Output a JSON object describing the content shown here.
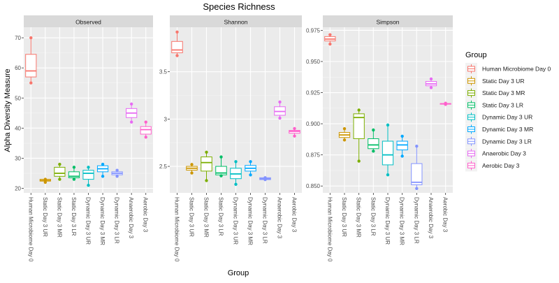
{
  "title": "Species Richness",
  "xlabel": "Group",
  "ylabel": "Alpha Diversity Measure",
  "legend": {
    "title": "Group",
    "position": "right"
  },
  "groups": [
    {
      "name": "Human Microbiome Day 0",
      "color": "#F8766D"
    },
    {
      "name": "Static Day 3 UR",
      "color": "#CD9600"
    },
    {
      "name": "Static Day 3 MR",
      "color": "#7CAE00"
    },
    {
      "name": "Static Day 3 LR",
      "color": "#00BE67"
    },
    {
      "name": "Dynamic Day 3 UR",
      "color": "#00BFC4"
    },
    {
      "name": "Dynamic Day 3 MR",
      "color": "#00A9FF"
    },
    {
      "name": "Dynamic Day 3 LR",
      "color": "#8494FF"
    },
    {
      "name": "Anaerobic Day 3",
      "color": "#E76BF3"
    },
    {
      "name": "Aerobic Day 3",
      "color": "#FF61CC"
    }
  ],
  "chart_data": [
    {
      "type": "boxplot",
      "panel": "Observed",
      "ylim": [
        18.5,
        73.5
      ],
      "yticks": [
        20,
        30,
        40,
        50,
        60,
        70
      ],
      "grid": true,
      "boxes": [
        {
          "group": "Human Microbiome Day 0",
          "min": 55,
          "q1": 57,
          "median": 59,
          "q3": 64.5,
          "max": 70,
          "points": [
            55,
            70
          ]
        },
        {
          "group": "Static Day 3 UR",
          "min": 22,
          "q1": 22.4,
          "median": 22.6,
          "q3": 23,
          "max": 23,
          "points": [
            22,
            23
          ]
        },
        {
          "group": "Static Day 3 MR",
          "min": 23,
          "q1": 24,
          "median": 25,
          "q3": 27,
          "max": 28,
          "points": [
            23,
            28
          ]
        },
        {
          "group": "Static Day 3 LR",
          "min": 23,
          "q1": 23.5,
          "median": 24,
          "q3": 25.5,
          "max": 27,
          "points": [
            23,
            27
          ]
        },
        {
          "group": "Dynamic Day 3 UR",
          "min": 21,
          "q1": 23,
          "median": 25,
          "q3": 26,
          "max": 27,
          "points": [
            21,
            27
          ]
        },
        {
          "group": "Dynamic Day 3 MR",
          "min": 24,
          "q1": 25.5,
          "median": 26.5,
          "q3": 27.5,
          "max": 28,
          "points": [
            24,
            28
          ]
        },
        {
          "group": "Dynamic Day 3 LR",
          "min": 24,
          "q1": 24.5,
          "median": 25,
          "q3": 25.5,
          "max": 26,
          "points": [
            24,
            26
          ]
        },
        {
          "group": "Anaerobic Day 3",
          "min": 42,
          "q1": 43.5,
          "median": 45,
          "q3": 46.5,
          "max": 48,
          "points": [
            42,
            48
          ]
        },
        {
          "group": "Aerobic Day 3",
          "min": 37,
          "q1": 38,
          "median": 39.5,
          "q3": 40.5,
          "max": 42,
          "points": [
            37,
            42
          ]
        }
      ]
    },
    {
      "type": "boxplot",
      "panel": "Shannon",
      "ylim": [
        2.22,
        3.97
      ],
      "yticks": [
        2.5,
        3.0,
        3.5
      ],
      "grid": true,
      "boxes": [
        {
          "group": "Human Microbiome Day 0",
          "min": 3.67,
          "q1": 3.7,
          "median": 3.73,
          "q3": 3.82,
          "max": 3.92,
          "points": [
            3.67,
            3.92
          ]
        },
        {
          "group": "Static Day 3 UR",
          "min": 2.43,
          "q1": 2.46,
          "median": 2.48,
          "q3": 2.5,
          "max": 2.52,
          "points": [
            2.43,
            2.52
          ]
        },
        {
          "group": "Static Day 3 MR",
          "min": 2.35,
          "q1": 2.45,
          "median": 2.54,
          "q3": 2.6,
          "max": 2.65,
          "points": [
            2.35,
            2.65
          ]
        },
        {
          "group": "Static Day 3 LR",
          "min": 2.4,
          "q1": 2.41,
          "median": 2.43,
          "q3": 2.5,
          "max": 2.6,
          "points": [
            2.4,
            2.6
          ]
        },
        {
          "group": "Dynamic Day 3 UR",
          "min": 2.31,
          "q1": 2.37,
          "median": 2.42,
          "q3": 2.48,
          "max": 2.55,
          "points": [
            2.31,
            2.55
          ]
        },
        {
          "group": "Dynamic Day 3 MR",
          "min": 2.41,
          "q1": 2.45,
          "median": 2.48,
          "q3": 2.51,
          "max": 2.55,
          "points": [
            2.41,
            2.55
          ]
        },
        {
          "group": "Dynamic Day 3 LR",
          "min": 2.36,
          "q1": 2.36,
          "median": 2.37,
          "q3": 2.38,
          "max": 2.38,
          "points": [
            2.36,
            2.38
          ]
        },
        {
          "group": "Anaerobic Day 3",
          "min": 3.01,
          "q1": 3.04,
          "median": 3.08,
          "q3": 3.13,
          "max": 3.18,
          "points": [
            3.01,
            3.18
          ]
        },
        {
          "group": "Aerobic Day 3",
          "min": 2.82,
          "q1": 2.85,
          "median": 2.87,
          "q3": 2.88,
          "max": 2.9,
          "points": [
            2.82,
            2.9
          ]
        }
      ]
    },
    {
      "type": "boxplot",
      "panel": "Simpson",
      "ylim": [
        0.8445,
        0.9775
      ],
      "yticks": [
        0.85,
        0.875,
        0.9,
        0.925,
        0.95,
        0.975
      ],
      "ytick_labels": [
        "0.850",
        "0.875",
        "0.900",
        "0.925",
        "0.950",
        "0.975"
      ],
      "grid": true,
      "boxes": [
        {
          "group": "Human Microbiome Day 0",
          "min": 0.964,
          "q1": 0.9665,
          "median": 0.968,
          "q3": 0.97,
          "max": 0.9715,
          "points": [
            0.964,
            0.9715
          ]
        },
        {
          "group": "Static Day 3 UR",
          "min": 0.887,
          "q1": 0.889,
          "median": 0.891,
          "q3": 0.893,
          "max": 0.896,
          "points": [
            0.887,
            0.896
          ]
        },
        {
          "group": "Static Day 3 MR",
          "min": 0.87,
          "q1": 0.888,
          "median": 0.905,
          "q3": 0.908,
          "max": 0.911,
          "points": [
            0.87,
            0.911
          ]
        },
        {
          "group": "Static Day 3 LR",
          "min": 0.878,
          "q1": 0.88,
          "median": 0.883,
          "q3": 0.888,
          "max": 0.895,
          "points": [
            0.878,
            0.895
          ]
        },
        {
          "group": "Dynamic Day 3 UR",
          "min": 0.859,
          "q1": 0.867,
          "median": 0.875,
          "q3": 0.886,
          "max": 0.899,
          "points": [
            0.859,
            0.899
          ]
        },
        {
          "group": "Dynamic Day 3 MR",
          "min": 0.874,
          "q1": 0.879,
          "median": 0.883,
          "q3": 0.886,
          "max": 0.89,
          "points": [
            0.874,
            0.89
          ]
        },
        {
          "group": "Dynamic Day 3 LR",
          "min": 0.848,
          "q1": 0.851,
          "median": 0.853,
          "q3": 0.868,
          "max": 0.882,
          "points": [
            0.848,
            0.882
          ]
        },
        {
          "group": "Anaerobic Day 3",
          "min": 0.929,
          "q1": 0.9305,
          "median": 0.932,
          "q3": 0.934,
          "max": 0.936,
          "points": [
            0.929,
            0.936
          ]
        },
        {
          "group": "Aerobic Day 3",
          "min": 0.9155,
          "q1": 0.9157,
          "median": 0.916,
          "q3": 0.9162,
          "max": 0.9165,
          "points": [
            0.9155,
            0.9165
          ]
        }
      ]
    }
  ]
}
